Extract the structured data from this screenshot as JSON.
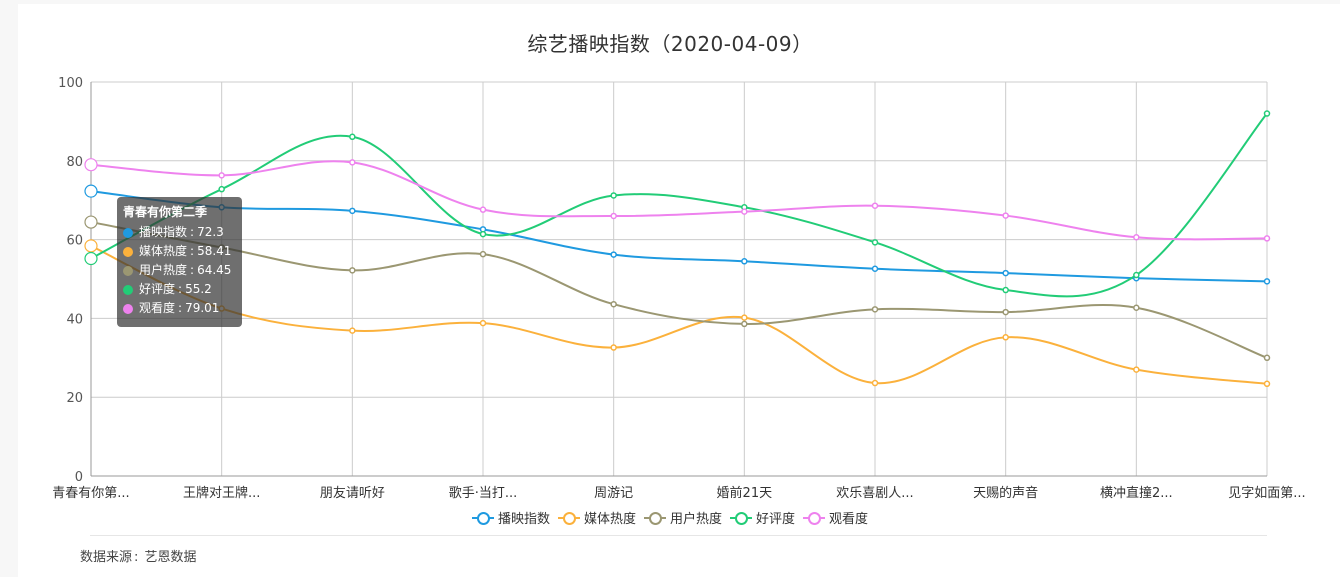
{
  "title": "综艺播映指数（2020-04-09）",
  "source": {
    "label": "数据来源",
    "value": "艺恩数据"
  },
  "tooltip": {
    "title": "青春有你第二季",
    "rows": [
      {
        "name": "播映指数",
        "value": "72.3",
        "color": "#1f9ae0"
      },
      {
        "name": "媒体热度",
        "value": "58.41",
        "color": "#fbb13c"
      },
      {
        "name": "用户热度",
        "value": "64.45",
        "color": "#9b9772"
      },
      {
        "name": "好评度",
        "value": "55.2",
        "color": "#22cc77"
      },
      {
        "name": "观看度",
        "value": "79.01",
        "color": "#ee82ee"
      }
    ]
  },
  "chart_data": {
    "type": "line",
    "smooth": true,
    "categories": [
      "青春有你第...",
      "王牌对王牌...",
      "朋友请听好",
      "歌手·当打...",
      "周游记",
      "婚前21天",
      "欢乐喜剧人...",
      "天赐的声音",
      "横冲直撞2...",
      "见字如面第..."
    ],
    "ylim": [
      0,
      100
    ],
    "yticks": [
      0,
      20,
      40,
      60,
      80,
      100
    ],
    "grid": true,
    "legend_position": "bottom",
    "series": [
      {
        "name": "播映指数",
        "color": "#1f9ae0",
        "values": [
          72.3,
          68.2,
          67.3,
          62.6,
          56.2,
          54.5,
          52.6,
          51.5,
          50.2,
          49.4
        ]
      },
      {
        "name": "媒体热度",
        "color": "#fbb13c",
        "values": [
          58.41,
          42.5,
          36.9,
          38.8,
          32.6,
          40.2,
          23.6,
          35.2,
          27.0,
          23.4
        ]
      },
      {
        "name": "用户热度",
        "color": "#9b9772",
        "values": [
          64.45,
          58.0,
          52.2,
          56.3,
          43.6,
          38.6,
          42.3,
          41.6,
          42.7,
          30.0
        ]
      },
      {
        "name": "好评度",
        "color": "#22cc77",
        "values": [
          55.2,
          72.8,
          86.1,
          61.4,
          71.2,
          68.2,
          59.3,
          47.2,
          51.0,
          92.0
        ]
      },
      {
        "name": "观看度",
        "color": "#ee82ee",
        "values": [
          79.01,
          76.3,
          79.6,
          67.6,
          66.0,
          67.1,
          68.6,
          66.1,
          60.6,
          60.3
        ]
      }
    ]
  }
}
